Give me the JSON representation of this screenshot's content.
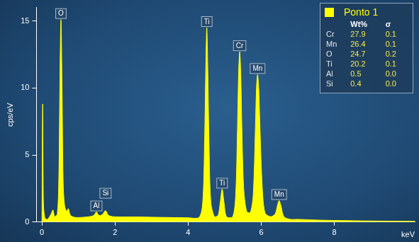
{
  "chart_data": {
    "type": "area",
    "y_label": "cps/eV",
    "x_label": "keV",
    "x": [
      0.0,
      0.02,
      0.04,
      0.08,
      0.15,
      0.25,
      0.3,
      0.35,
      0.42,
      0.46,
      0.49,
      0.52,
      0.55,
      0.58,
      0.62,
      0.68,
      0.72,
      0.78,
      0.9,
      1.1,
      1.3,
      1.42,
      1.49,
      1.56,
      1.65,
      1.74,
      1.82,
      1.95,
      2.2,
      2.6,
      3.0,
      3.5,
      4.0,
      4.3,
      4.4,
      4.45,
      4.48,
      4.51,
      4.54,
      4.57,
      4.62,
      4.72,
      4.82,
      4.88,
      4.93,
      4.98,
      5.05,
      5.22,
      5.3,
      5.35,
      5.38,
      5.41,
      5.44,
      5.47,
      5.52,
      5.6,
      5.7,
      5.78,
      5.84,
      5.87,
      5.9,
      5.93,
      5.96,
      6.02,
      6.1,
      6.25,
      6.38,
      6.44,
      6.49,
      6.54,
      6.62,
      6.8,
      7.0,
      7.5,
      8.0,
      8.5,
      9.0,
      9.5,
      10.0,
      10.2
    ],
    "series": [
      {
        "name": "Ponto 1",
        "color": "#ffff00",
        "values": [
          0,
          8.8,
          1.5,
          0.3,
          0.2,
          0.6,
          0.9,
          0.4,
          0.6,
          3,
          10,
          15.1,
          10,
          3,
          1.2,
          0.8,
          1.0,
          0.5,
          0.35,
          0.35,
          0.4,
          0.5,
          0.75,
          0.5,
          0.55,
          0.85,
          0.5,
          0.4,
          0.38,
          0.38,
          0.36,
          0.34,
          0.32,
          0.35,
          1.5,
          6,
          11,
          14.5,
          11,
          6,
          1.5,
          0.4,
          0.5,
          1.5,
          2.45,
          1.5,
          0.4,
          0.4,
          2,
          7,
          11,
          12.7,
          11,
          7,
          2.5,
          0.8,
          0.7,
          2,
          7,
          10,
          11.0,
          10,
          7.5,
          3,
          0.7,
          0.4,
          0.6,
          1.2,
          1.6,
          1.2,
          0.4,
          0.2,
          0.2,
          0.15,
          0.12,
          0.1,
          0.08,
          0.07,
          0.06,
          0.05
        ]
      }
    ],
    "xlim": [
      -0.15,
      10.2
    ],
    "ylim": [
      0,
      16
    ],
    "xticks": [
      0,
      2,
      4,
      6,
      8
    ],
    "yticks": [
      0,
      5,
      10,
      15
    ],
    "grid": false,
    "annotations": [
      {
        "text": "O",
        "x": 0.52
      },
      {
        "text": "Al",
        "x": 1.49
      },
      {
        "text": "Si",
        "x": 1.74
      },
      {
        "text": "Ti",
        "x": 4.51
      },
      {
        "text": "Ti",
        "x": 4.93
      },
      {
        "text": "Cr",
        "x": 5.41
      },
      {
        "text": "Mn",
        "x": 5.9
      },
      {
        "text": "Mn",
        "x": 6.49
      }
    ],
    "composition": {
      "columns": [
        "",
        "Wt%",
        "σ"
      ],
      "rows": [
        [
          "Cr",
          27.9,
          0.1
        ],
        [
          "Mn",
          26.4,
          0.1
        ],
        [
          "O",
          24.7,
          0.2
        ],
        [
          "Ti",
          20.2,
          0.1
        ],
        [
          "Al",
          0.5,
          0.0
        ],
        [
          "Si",
          0.4,
          0.0
        ]
      ]
    }
  }
}
